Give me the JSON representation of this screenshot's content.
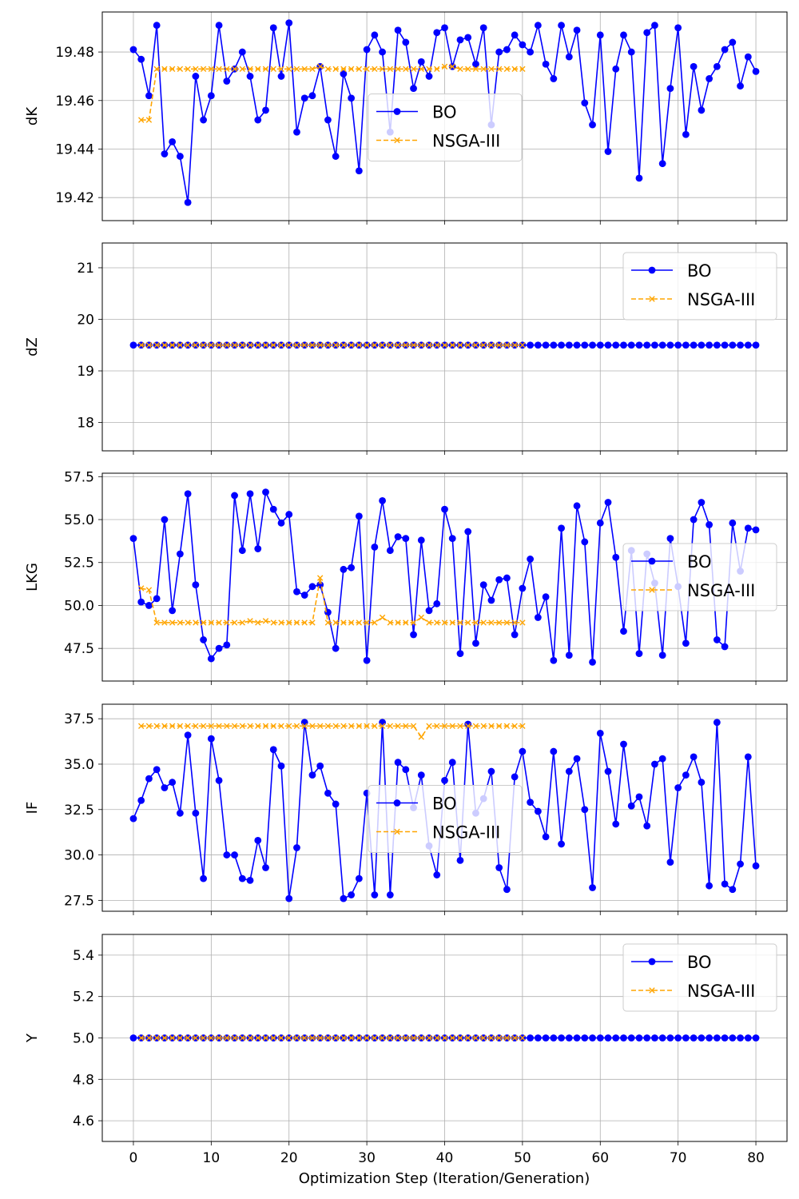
{
  "figure": {
    "xlabel": "Optimization Step (Iteration/Generation)",
    "xticks": [
      "0",
      "10",
      "20",
      "30",
      "40",
      "50",
      "60",
      "70",
      "80"
    ]
  },
  "colors": {
    "bo": "#0000ff",
    "nsga": "#ffa500",
    "grid": "#b0b0b0",
    "frame": "#000000"
  },
  "chart_data": [
    {
      "type": "line",
      "ylabel": "dK",
      "xlim": [
        -4,
        84
      ],
      "ylim": [
        19.4105,
        19.4965
      ],
      "yticks": [
        19.42,
        19.44,
        19.46,
        19.48
      ],
      "ytick_labels": [
        "19.42",
        "19.44",
        "19.46",
        "19.48"
      ],
      "legend": "center",
      "series": [
        {
          "name": "BO",
          "marker": "circle",
          "x": [
            0,
            1,
            2,
            3,
            4,
            5,
            6,
            7,
            8,
            9,
            10,
            11,
            12,
            13,
            14,
            15,
            16,
            17,
            18,
            19,
            20,
            21,
            22,
            23,
            24,
            25,
            26,
            27,
            28,
            29,
            30,
            31,
            32,
            33,
            34,
            35,
            36,
            37,
            38,
            39,
            40,
            41,
            42,
            43,
            44,
            45,
            46,
            47,
            48,
            49,
            50,
            51,
            52,
            53,
            54,
            55,
            56,
            57,
            58,
            59,
            60,
            61,
            62,
            63,
            64,
            65,
            66,
            67,
            68,
            69,
            70,
            71,
            72,
            73,
            74,
            75,
            76,
            77,
            78,
            79,
            80
          ],
          "y": [
            19.481,
            19.477,
            19.462,
            19.491,
            19.438,
            19.443,
            19.437,
            19.418,
            19.47,
            19.452,
            19.462,
            19.491,
            19.468,
            19.473,
            19.48,
            19.47,
            19.452,
            19.456,
            19.49,
            19.47,
            19.492,
            19.447,
            19.461,
            19.462,
            19.474,
            19.452,
            19.437,
            19.471,
            19.461,
            19.431,
            19.481,
            19.487,
            19.48,
            19.447,
            19.489,
            19.484,
            19.465,
            19.476,
            19.47,
            19.488,
            19.49,
            19.474,
            19.485,
            19.486,
            19.475,
            19.49,
            19.45,
            19.48,
            19.481,
            19.487,
            19.483,
            19.48,
            19.491,
            19.475,
            19.469,
            19.491,
            19.478,
            19.489,
            19.459,
            19.45,
            19.487,
            19.439,
            19.473,
            19.487,
            19.48,
            19.428,
            19.488,
            19.491,
            19.434,
            19.465,
            19.49,
            19.446,
            19.474,
            19.456,
            19.469,
            19.474,
            19.481,
            19.484,
            19.466,
            19.478,
            19.472
          ]
        },
        {
          "name": "NSGA-III",
          "marker": "x",
          "x": [
            1,
            2,
            3,
            4,
            5,
            6,
            7,
            8,
            9,
            10,
            11,
            12,
            13,
            14,
            15,
            16,
            17,
            18,
            19,
            20,
            21,
            22,
            23,
            24,
            25,
            26,
            27,
            28,
            29,
            30,
            31,
            32,
            33,
            34,
            35,
            36,
            37,
            38,
            39,
            40,
            41,
            42,
            43,
            44,
            45,
            46,
            47,
            48,
            49,
            50
          ],
          "y": [
            19.452,
            19.452,
            19.473,
            19.473,
            19.473,
            19.473,
            19.473,
            19.473,
            19.473,
            19.473,
            19.473,
            19.473,
            19.473,
            19.473,
            19.473,
            19.473,
            19.473,
            19.473,
            19.473,
            19.473,
            19.473,
            19.473,
            19.473,
            19.474,
            19.473,
            19.473,
            19.473,
            19.473,
            19.473,
            19.473,
            19.473,
            19.473,
            19.473,
            19.473,
            19.473,
            19.473,
            19.473,
            19.473,
            19.473,
            19.474,
            19.474,
            19.473,
            19.473,
            19.473,
            19.473,
            19.473,
            19.473,
            19.473,
            19.473,
            19.473
          ]
        }
      ]
    },
    {
      "type": "line",
      "ylabel": "dZ",
      "xlim": [
        -4,
        84
      ],
      "ylim": [
        17.45,
        21.48
      ],
      "yticks": [
        18,
        19,
        20,
        21
      ],
      "ytick_labels": [
        "18",
        "19",
        "20",
        "21"
      ],
      "legend": "upper right",
      "series": [
        {
          "name": "BO",
          "marker": "circle",
          "x_start": 0,
          "x_end": 80,
          "y_constant": 19.5
        },
        {
          "name": "NSGA-III",
          "marker": "x",
          "x_start": 1,
          "x_end": 50,
          "y_constant": 19.5
        }
      ]
    },
    {
      "type": "line",
      "ylabel": "LKG",
      "xlim": [
        -4,
        84
      ],
      "ylim": [
        45.6,
        57.7
      ],
      "yticks": [
        47.5,
        50.0,
        52.5,
        55.0,
        57.5
      ],
      "ytick_labels": [
        "47.5",
        "50.0",
        "52.5",
        "55.0",
        "57.5"
      ],
      "legend": "center right",
      "series": [
        {
          "name": "BO",
          "marker": "circle",
          "x": [
            0,
            1,
            2,
            3,
            4,
            5,
            6,
            7,
            8,
            9,
            10,
            11,
            12,
            13,
            14,
            15,
            16,
            17,
            18,
            19,
            20,
            21,
            22,
            23,
            24,
            25,
            26,
            27,
            28,
            29,
            30,
            31,
            32,
            33,
            34,
            35,
            36,
            37,
            38,
            39,
            40,
            41,
            42,
            43,
            44,
            45,
            46,
            47,
            48,
            49,
            50,
            51,
            52,
            53,
            54,
            55,
            56,
            57,
            58,
            59,
            60,
            61,
            62,
            63,
            64,
            65,
            66,
            67,
            68,
            69,
            70,
            71,
            72,
            73,
            74,
            75,
            76,
            77,
            78,
            79,
            80
          ],
          "y": [
            53.9,
            50.2,
            50.0,
            50.4,
            55.0,
            49.7,
            53.0,
            56.5,
            51.2,
            48.0,
            46.9,
            47.5,
            47.7,
            56.4,
            53.2,
            56.5,
            53.3,
            56.6,
            55.6,
            54.8,
            55.3,
            50.8,
            50.6,
            51.1,
            51.2,
            49.6,
            47.5,
            52.1,
            52.2,
            55.2,
            46.8,
            53.4,
            56.1,
            53.2,
            54.0,
            53.9,
            48.3,
            53.8,
            49.7,
            50.1,
            55.6,
            53.9,
            47.2,
            54.3,
            47.8,
            51.2,
            50.3,
            51.5,
            51.6,
            48.3,
            51.0,
            52.7,
            49.3,
            50.5,
            46.8,
            54.5,
            47.1,
            55.8,
            53.7,
            46.7,
            54.8,
            56.0,
            52.8,
            48.5,
            53.2,
            47.2,
            53.0,
            51.3,
            47.1,
            53.9,
            51.1,
            47.8,
            55.0,
            56.0,
            54.7,
            48.0,
            47.6,
            54.8,
            52.0,
            54.5,
            54.4
          ]
        },
        {
          "name": "NSGA-III",
          "marker": "x",
          "x": [
            1,
            2,
            3,
            4,
            5,
            6,
            7,
            8,
            9,
            10,
            11,
            12,
            13,
            14,
            15,
            16,
            17,
            18,
            19,
            20,
            21,
            22,
            23,
            24,
            25,
            26,
            27,
            28,
            29,
            30,
            31,
            32,
            33,
            34,
            35,
            36,
            37,
            38,
            39,
            40,
            41,
            42,
            43,
            44,
            45,
            46,
            47,
            48,
            49,
            50
          ],
          "y": [
            51.0,
            50.9,
            49.0,
            49.0,
            49.0,
            49.0,
            49.0,
            49.0,
            49.0,
            49.0,
            49.0,
            49.0,
            49.0,
            49.0,
            49.1,
            49.0,
            49.1,
            49.0,
            49.0,
            49.0,
            49.0,
            49.0,
            49.0,
            51.6,
            49.0,
            49.0,
            49.0,
            49.0,
            49.0,
            49.0,
            49.0,
            49.3,
            49.0,
            49.0,
            49.0,
            49.0,
            49.3,
            49.0,
            49.0,
            49.0,
            49.0,
            49.0,
            49.0,
            49.0,
            49.0,
            49.0,
            49.0,
            49.0,
            49.0,
            49.0
          ]
        }
      ]
    },
    {
      "type": "line",
      "ylabel": "IF",
      "xlim": [
        -4,
        84
      ],
      "ylim": [
        26.9,
        38.3
      ],
      "yticks": [
        27.5,
        30.0,
        32.5,
        35.0,
        37.5
      ],
      "ytick_labels": [
        "27.5",
        "30.0",
        "32.5",
        "35.0",
        "37.5"
      ],
      "legend": "center",
      "series": [
        {
          "name": "BO",
          "marker": "circle",
          "x": [
            0,
            1,
            2,
            3,
            4,
            5,
            6,
            7,
            8,
            9,
            10,
            11,
            12,
            13,
            14,
            15,
            16,
            17,
            18,
            19,
            20,
            21,
            22,
            23,
            24,
            25,
            26,
            27,
            28,
            29,
            30,
            31,
            32,
            33,
            34,
            35,
            36,
            37,
            38,
            39,
            40,
            41,
            42,
            43,
            44,
            45,
            46,
            47,
            48,
            49,
            50,
            51,
            52,
            53,
            54,
            55,
            56,
            57,
            58,
            59,
            60,
            61,
            62,
            63,
            64,
            65,
            66,
            67,
            68,
            69,
            70,
            71,
            72,
            73,
            74,
            75,
            76,
            77,
            78,
            79,
            80
          ],
          "y": [
            32.0,
            33.0,
            34.2,
            34.7,
            33.7,
            34.0,
            32.3,
            36.6,
            32.3,
            28.7,
            36.4,
            34.1,
            30.0,
            30.0,
            28.7,
            28.6,
            30.8,
            29.3,
            35.8,
            34.9,
            27.6,
            30.4,
            37.3,
            34.4,
            34.9,
            33.4,
            32.8,
            27.6,
            27.8,
            28.7,
            33.4,
            27.8,
            37.3,
            27.8,
            35.1,
            34.7,
            32.6,
            34.4,
            30.5,
            28.9,
            34.1,
            35.1,
            29.7,
            37.2,
            32.3,
            33.1,
            34.6,
            29.3,
            28.1,
            34.3,
            35.7,
            32.9,
            32.4,
            31.0,
            35.7,
            30.6,
            34.6,
            35.3,
            32.5,
            28.2,
            36.7,
            34.6,
            31.7,
            36.1,
            32.7,
            33.2,
            31.6,
            35.0,
            35.3,
            29.6,
            33.7,
            34.4,
            35.4,
            34.0,
            28.3,
            37.3,
            28.4,
            28.1,
            29.5,
            35.4,
            29.4
          ]
        },
        {
          "name": "NSGA-III",
          "marker": "x",
          "x": [
            1,
            2,
            3,
            4,
            5,
            6,
            7,
            8,
            9,
            10,
            11,
            12,
            13,
            14,
            15,
            16,
            17,
            18,
            19,
            20,
            21,
            22,
            23,
            24,
            25,
            26,
            27,
            28,
            29,
            30,
            31,
            32,
            33,
            34,
            35,
            36,
            37,
            38,
            39,
            40,
            41,
            42,
            43,
            44,
            45,
            46,
            47,
            48,
            49,
            50
          ],
          "y": [
            37.1,
            37.1,
            37.1,
            37.1,
            37.1,
            37.1,
            37.1,
            37.1,
            37.1,
            37.1,
            37.1,
            37.1,
            37.1,
            37.1,
            37.1,
            37.1,
            37.1,
            37.1,
            37.1,
            37.1,
            37.1,
            37.1,
            37.1,
            37.1,
            37.1,
            37.1,
            37.1,
            37.1,
            37.1,
            37.1,
            37.1,
            37.1,
            37.1,
            37.1,
            37.1,
            37.1,
            36.5,
            37.1,
            37.1,
            37.1,
            37.1,
            37.1,
            37.1,
            37.1,
            37.1,
            37.1,
            37.1,
            37.1,
            37.1,
            37.1
          ]
        }
      ]
    },
    {
      "type": "line",
      "ylabel": "Y",
      "xlim": [
        -4,
        84
      ],
      "ylim": [
        4.5,
        5.5
      ],
      "yticks": [
        4.6,
        4.8,
        5.0,
        5.2,
        5.4
      ],
      "ytick_labels": [
        "4.6",
        "4.8",
        "5.0",
        "5.2",
        "5.4"
      ],
      "legend": "upper right",
      "series": [
        {
          "name": "BO",
          "marker": "circle",
          "x_start": 0,
          "x_end": 80,
          "y_constant": 5.0
        },
        {
          "name": "NSGA-III",
          "marker": "x",
          "x_start": 1,
          "x_end": 50,
          "y_constant": 5.0
        }
      ]
    }
  ]
}
